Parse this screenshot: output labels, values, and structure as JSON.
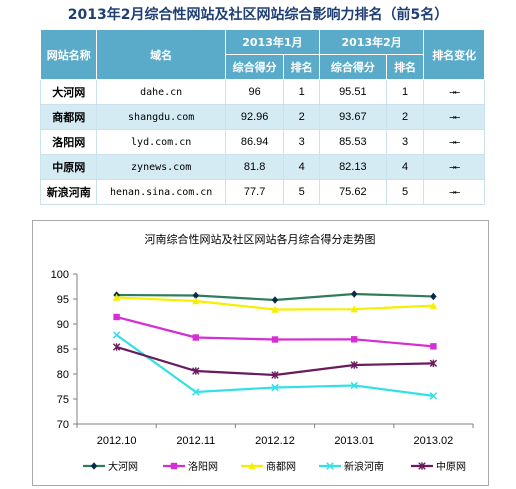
{
  "page_title": "2013年2月综合性网站及社区网站综合影响力排名（前5名）",
  "table": {
    "headers": {
      "site": "网站名称",
      "domain": "域名",
      "jan": "2013年1月",
      "feb": "2013年2月",
      "change": "排名变化",
      "score": "综合得分",
      "rank": "排名"
    },
    "rows": [
      {
        "site": "大河网",
        "domain": "dahe.cn",
        "jan_score": "96",
        "jan_rank": "1",
        "feb_score": "95.51",
        "feb_rank": "1",
        "change": "→←"
      },
      {
        "site": "商都网",
        "domain": "shangdu.com",
        "jan_score": "92.96",
        "jan_rank": "2",
        "feb_score": "93.67",
        "feb_rank": "2",
        "change": "→←"
      },
      {
        "site": "洛阳网",
        "domain": "lyd.com.cn",
        "jan_score": "86.94",
        "jan_rank": "3",
        "feb_score": "85.53",
        "feb_rank": "3",
        "change": "→←"
      },
      {
        "site": "中原网",
        "domain": "zynews.com",
        "jan_score": "81.8",
        "jan_rank": "4",
        "feb_score": "82.13",
        "feb_rank": "4",
        "change": "→←"
      },
      {
        "site": "新浪河南",
        "domain": "henan.sina.com.cn",
        "jan_score": "77.7",
        "jan_rank": "5",
        "feb_score": "75.62",
        "feb_rank": "5",
        "change": "→←"
      }
    ]
  },
  "chart_data": {
    "type": "line",
    "title": "河南综合性网站及社区网站各月综合得分走势图",
    "xlabel": "",
    "ylabel": "",
    "categories": [
      "2012.10",
      "2012.11",
      "2012.12",
      "2013.01",
      "2013.02"
    ],
    "ylim": [
      70,
      100
    ],
    "yticks": [
      70,
      75,
      80,
      85,
      90,
      95,
      100
    ],
    "grid": false,
    "legend_position": "bottom",
    "series": [
      {
        "name": "大河网",
        "color": "#2e7d5b",
        "marker": "diamond",
        "values": [
          95.8,
          95.7,
          94.8,
          96.0,
          95.51
        ]
      },
      {
        "name": "洛阳网",
        "color": "#d42fd4",
        "marker": "square",
        "values": [
          91.4,
          87.3,
          86.9,
          86.94,
          85.53
        ]
      },
      {
        "name": "商都网",
        "color": "#f5ef00",
        "marker": "triangle",
        "values": [
          95.3,
          94.6,
          92.9,
          92.96,
          93.67
        ]
      },
      {
        "name": "新浪河南",
        "color": "#33e0e6",
        "marker": "x",
        "values": [
          87.8,
          76.4,
          77.3,
          77.7,
          75.62
        ]
      },
      {
        "name": "中原网",
        "color": "#6b1a5e",
        "marker": "star",
        "values": [
          85.4,
          80.6,
          79.8,
          81.8,
          82.13
        ]
      }
    ]
  }
}
